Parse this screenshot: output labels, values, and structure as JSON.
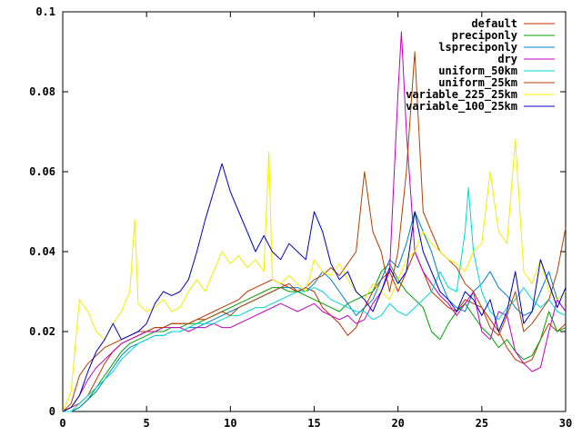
{
  "chart_data": {
    "type": "line",
    "title": "",
    "xlabel": "",
    "ylabel": "",
    "xlim": [
      0,
      30
    ],
    "ylim": [
      0,
      0.1
    ],
    "grid": false,
    "legend_position": "top-right",
    "x_ticks": [
      0,
      5,
      10,
      15,
      20,
      25,
      30
    ],
    "x_tick_labels": [
      "0",
      "5",
      "10",
      "15",
      "20",
      "25",
      "30"
    ],
    "y_ticks": [
      0,
      0.02,
      0.04,
      0.06,
      0.08,
      0.1
    ],
    "y_tick_labels": [
      "0",
      "0.02",
      "0.04",
      "0.06",
      "0.08",
      "0.1"
    ],
    "series": [
      {
        "name": "default",
        "color": "#c03000",
        "x": [
          0,
          0.5,
          1,
          1.5,
          2,
          2.5,
          3,
          3.5,
          4,
          4.5,
          5,
          5.5,
          6,
          6.5,
          7,
          7.5,
          8,
          8.5,
          9,
          9.5,
          10,
          10.5,
          11,
          11.5,
          12,
          12.5,
          13,
          13.5,
          14,
          14.5,
          15,
          15.5,
          16,
          16.5,
          17,
          17.5,
          18,
          18.5,
          19,
          19.5,
          20,
          20.5,
          21,
          21.5,
          22,
          22.5,
          23,
          23.5,
          24,
          24.5,
          25,
          25.5,
          26,
          26.5,
          27,
          27.5,
          28,
          28.5,
          29,
          29.5,
          30
        ],
        "values": [
          0,
          0.001,
          0.002,
          0.004,
          0.008,
          0.012,
          0.015,
          0.017,
          0.018,
          0.019,
          0.02,
          0.021,
          0.021,
          0.022,
          0.022,
          0.022,
          0.023,
          0.024,
          0.025,
          0.026,
          0.027,
          0.028,
          0.03,
          0.031,
          0.032,
          0.033,
          0.032,
          0.031,
          0.03,
          0.031,
          0.03,
          0.026,
          0.024,
          0.022,
          0.019,
          0.021,
          0.026,
          0.03,
          0.033,
          0.035,
          0.03,
          0.035,
          0.04,
          0.035,
          0.03,
          0.028,
          0.026,
          0.025,
          0.028,
          0.027,
          0.026,
          0.023,
          0.02,
          0.016,
          0.013,
          0.012,
          0.013,
          0.018,
          0.022,
          0.02,
          0.022
        ]
      },
      {
        "name": "preciponly",
        "color": "#00a000",
        "x": [
          0,
          0.5,
          1,
          1.5,
          2,
          2.5,
          3,
          3.5,
          4,
          4.5,
          5,
          5.5,
          6,
          6.5,
          7,
          7.5,
          8,
          8.5,
          9,
          9.5,
          10,
          10.5,
          11,
          11.5,
          12,
          12.5,
          13,
          13.5,
          14,
          14.5,
          15,
          15.5,
          16,
          16.5,
          17,
          17.5,
          18,
          18.5,
          19,
          19.5,
          20,
          20.5,
          21,
          21.5,
          22,
          22.5,
          23,
          23.5,
          24,
          24.5,
          25,
          25.5,
          26,
          26.5,
          27,
          27.5,
          28,
          28.5,
          29,
          29.5,
          30
        ],
        "values": [
          0,
          0,
          0.001,
          0.003,
          0.006,
          0.009,
          0.012,
          0.015,
          0.017,
          0.018,
          0.019,
          0.02,
          0.02,
          0.021,
          0.021,
          0.022,
          0.022,
          0.023,
          0.024,
          0.025,
          0.026,
          0.027,
          0.028,
          0.029,
          0.03,
          0.031,
          0.031,
          0.03,
          0.03,
          0.029,
          0.028,
          0.027,
          0.026,
          0.025,
          0.027,
          0.028,
          0.029,
          0.03,
          0.035,
          0.037,
          0.033,
          0.03,
          0.028,
          0.026,
          0.02,
          0.018,
          0.022,
          0.025,
          0.027,
          0.024,
          0.021,
          0.019,
          0.016,
          0.018,
          0.015,
          0.013,
          0.014,
          0.018,
          0.025,
          0.02,
          0.021
        ]
      },
      {
        "name": "lspreciponly",
        "color": "#0080c0",
        "x": [
          0,
          0.5,
          1,
          1.5,
          2,
          2.5,
          3,
          3.5,
          4,
          4.5,
          5,
          5.5,
          6,
          6.5,
          7,
          7.5,
          8,
          8.5,
          9,
          9.5,
          10,
          10.5,
          11,
          11.5,
          12,
          12.5,
          13,
          13.5,
          14,
          14.5,
          15,
          15.5,
          16,
          16.5,
          17,
          17.5,
          18,
          18.5,
          19,
          19.5,
          20,
          20.5,
          21,
          21.5,
          22,
          22.5,
          23,
          23.5,
          24,
          24.5,
          25,
          25.5,
          26,
          26.5,
          27,
          27.5,
          28,
          28.5,
          29,
          29.5,
          30
        ],
        "values": [
          0,
          0,
          0.001,
          0.003,
          0.005,
          0.008,
          0.011,
          0.014,
          0.016,
          0.017,
          0.018,
          0.019,
          0.019,
          0.02,
          0.02,
          0.021,
          0.021,
          0.022,
          0.023,
          0.024,
          0.025,
          0.026,
          0.027,
          0.028,
          0.029,
          0.03,
          0.031,
          0.031,
          0.031,
          0.03,
          0.032,
          0.035,
          0.033,
          0.03,
          0.027,
          0.024,
          0.026,
          0.028,
          0.033,
          0.038,
          0.036,
          0.042,
          0.05,
          0.045,
          0.04,
          0.033,
          0.028,
          0.026,
          0.025,
          0.03,
          0.032,
          0.035,
          0.031,
          0.029,
          0.026,
          0.024,
          0.025,
          0.03,
          0.035,
          0.028,
          0.025
        ]
      },
      {
        "name": "dry",
        "color": "#c000c0",
        "x": [
          0,
          0.5,
          1,
          1.5,
          2,
          2.5,
          3,
          3.5,
          4,
          4.5,
          5,
          5.5,
          6,
          6.5,
          7,
          7.5,
          8,
          8.5,
          9,
          9.5,
          10,
          10.5,
          11,
          11.5,
          12,
          12.5,
          13,
          13.5,
          14,
          14.5,
          15,
          15.5,
          16,
          16.5,
          17,
          17.5,
          18,
          18.5,
          19,
          19.5,
          20,
          20.2,
          20.5,
          21,
          21.5,
          22,
          22.5,
          23,
          23.5,
          24,
          24.5,
          25,
          25.5,
          26,
          26.5,
          27,
          27.5,
          28,
          28.5,
          29,
          29.5,
          30
        ],
        "values": [
          0,
          0.001,
          0.004,
          0.008,
          0.011,
          0.013,
          0.015,
          0.017,
          0.018,
          0.019,
          0.02,
          0.02,
          0.021,
          0.021,
          0.021,
          0.02,
          0.021,
          0.021,
          0.022,
          0.021,
          0.021,
          0.022,
          0.023,
          0.024,
          0.025,
          0.026,
          0.027,
          0.026,
          0.025,
          0.026,
          0.027,
          0.025,
          0.024,
          0.023,
          0.024,
          0.022,
          0.023,
          0.027,
          0.03,
          0.035,
          0.08,
          0.095,
          0.07,
          0.04,
          0.035,
          0.032,
          0.029,
          0.027,
          0.024,
          0.027,
          0.03,
          0.02,
          0.018,
          0.025,
          0.024,
          0.015,
          0.012,
          0.01,
          0.011,
          0.02,
          0.028,
          0.025
        ]
      },
      {
        "name": "uniform_50km",
        "color": "#00d8d8",
        "x": [
          0,
          0.5,
          1,
          1.5,
          2,
          2.5,
          3,
          3.5,
          4,
          4.5,
          5,
          5.5,
          6,
          6.5,
          7,
          7.5,
          8,
          8.5,
          9,
          9.5,
          10,
          10.5,
          11,
          11.5,
          12,
          12.5,
          13,
          13.5,
          14,
          14.5,
          15,
          15.5,
          16,
          16.5,
          17,
          17.5,
          18,
          18.5,
          19,
          19.5,
          20,
          20.5,
          21,
          21.5,
          22,
          22.5,
          23,
          23.5,
          24,
          24.2,
          24.5,
          25,
          25.5,
          26,
          26.5,
          27,
          27.5,
          28,
          28.5,
          29,
          29.5,
          30
        ],
        "values": [
          0,
          0,
          0.002,
          0.004,
          0.006,
          0.008,
          0.01,
          0.013,
          0.015,
          0.017,
          0.018,
          0.019,
          0.019,
          0.02,
          0.02,
          0.021,
          0.022,
          0.022,
          0.022,
          0.023,
          0.024,
          0.024,
          0.025,
          0.026,
          0.026,
          0.027,
          0.028,
          0.029,
          0.03,
          0.03,
          0.031,
          0.03,
          0.028,
          0.027,
          0.026,
          0.025,
          0.025,
          0.023,
          0.024,
          0.027,
          0.025,
          0.024,
          0.026,
          0.028,
          0.03,
          0.035,
          0.031,
          0.03,
          0.045,
          0.056,
          0.04,
          0.03,
          0.025,
          0.023,
          0.026,
          0.028,
          0.031,
          0.028,
          0.026,
          0.028,
          0.025,
          0.024
        ]
      },
      {
        "name": "uniform_25km",
        "color": "#b04000",
        "x": [
          0,
          0.5,
          1,
          1.5,
          2,
          2.5,
          3,
          3.5,
          4,
          4.5,
          5,
          5.5,
          6,
          6.5,
          7,
          7.5,
          8,
          8.5,
          9,
          9.5,
          10,
          10.5,
          11,
          11.5,
          12,
          12.5,
          13,
          13.5,
          14,
          14.5,
          15,
          15.5,
          16,
          16.5,
          17,
          17.5,
          18,
          18.5,
          19,
          19.5,
          20,
          20.5,
          21,
          21.5,
          22,
          22.5,
          23,
          23.5,
          24,
          24.5,
          25,
          25.5,
          26,
          26.5,
          27,
          27.5,
          28,
          28.5,
          29,
          29.5,
          30
        ],
        "values": [
          0,
          0.002,
          0.009,
          0.012,
          0.014,
          0.016,
          0.017,
          0.018,
          0.019,
          0.02,
          0.02,
          0.021,
          0.021,
          0.022,
          0.022,
          0.022,
          0.023,
          0.023,
          0.024,
          0.025,
          0.024,
          0.026,
          0.027,
          0.028,
          0.029,
          0.03,
          0.031,
          0.032,
          0.03,
          0.031,
          0.033,
          0.034,
          0.036,
          0.034,
          0.037,
          0.04,
          0.06,
          0.045,
          0.04,
          0.03,
          0.04,
          0.06,
          0.09,
          0.05,
          0.045,
          0.04,
          0.038,
          0.036,
          0.032,
          0.03,
          0.026,
          0.021,
          0.019,
          0.024,
          0.03,
          0.02,
          0.022,
          0.025,
          0.028,
          0.035,
          0.046
        ]
      },
      {
        "name": "variable_225_25km",
        "color": "#f0f000",
        "x": [
          0,
          0.5,
          1,
          1.5,
          2,
          2.5,
          3,
          3.5,
          4,
          4.3,
          4.5,
          5,
          5.5,
          6,
          6.5,
          7,
          7.5,
          8,
          8.5,
          9,
          9.5,
          10,
          10.5,
          11,
          11.5,
          12,
          12.3,
          12.5,
          13,
          13.5,
          14,
          14.5,
          15,
          15.5,
          16,
          16.5,
          17,
          17.5,
          18,
          18.5,
          19,
          19.5,
          20,
          20.5,
          21,
          21.5,
          22,
          22.5,
          23,
          23.5,
          24,
          24.5,
          25,
          25.5,
          26,
          26.5,
          27,
          27.5,
          28,
          28.5,
          29,
          29.5,
          30
        ],
        "values": [
          0,
          0.005,
          0.028,
          0.025,
          0.02,
          0.018,
          0.022,
          0.025,
          0.03,
          0.048,
          0.027,
          0.025,
          0.026,
          0.028,
          0.025,
          0.026,
          0.03,
          0.033,
          0.03,
          0.035,
          0.04,
          0.037,
          0.039,
          0.036,
          0.038,
          0.035,
          0.065,
          0.033,
          0.032,
          0.034,
          0.032,
          0.03,
          0.038,
          0.035,
          0.034,
          0.037,
          0.033,
          0.03,
          0.028,
          0.032,
          0.03,
          0.028,
          0.033,
          0.038,
          0.04,
          0.045,
          0.042,
          0.04,
          0.038,
          0.037,
          0.035,
          0.04,
          0.042,
          0.06,
          0.045,
          0.042,
          0.068,
          0.035,
          0.032,
          0.038,
          0.03,
          0.028,
          0.03
        ]
      },
      {
        "name": "variable_100_25km",
        "color": "#0000c0",
        "x": [
          0,
          0.5,
          1,
          1.5,
          2,
          2.5,
          3,
          3.5,
          4,
          4.5,
          5,
          5.5,
          6,
          6.5,
          7,
          7.5,
          8,
          8.5,
          9,
          9.5,
          10,
          10.5,
          11,
          11.5,
          12,
          12.5,
          13,
          13.5,
          14,
          14.5,
          15,
          15.5,
          16,
          16.5,
          17,
          17.5,
          18,
          18.5,
          19,
          19.5,
          20,
          20.5,
          21,
          21.5,
          22,
          22.5,
          23,
          23.5,
          24,
          24.5,
          25,
          25.5,
          26,
          26.5,
          27,
          27.5,
          28,
          28.5,
          29,
          29.5,
          30
        ],
        "values": [
          0,
          0.001,
          0.004,
          0.01,
          0.015,
          0.018,
          0.022,
          0.018,
          0.019,
          0.02,
          0.022,
          0.027,
          0.03,
          0.029,
          0.03,
          0.033,
          0.04,
          0.048,
          0.055,
          0.062,
          0.055,
          0.05,
          0.045,
          0.04,
          0.044,
          0.04,
          0.038,
          0.042,
          0.04,
          0.038,
          0.05,
          0.045,
          0.037,
          0.033,
          0.035,
          0.03,
          0.028,
          0.025,
          0.03,
          0.036,
          0.032,
          0.035,
          0.05,
          0.04,
          0.035,
          0.03,
          0.028,
          0.025,
          0.03,
          0.028,
          0.024,
          0.028,
          0.02,
          0.025,
          0.035,
          0.022,
          0.025,
          0.038,
          0.032,
          0.026,
          0.031
        ]
      }
    ]
  }
}
